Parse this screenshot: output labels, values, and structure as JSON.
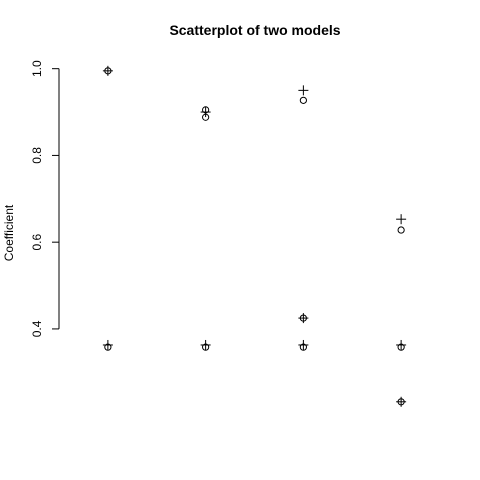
{
  "chart_data": {
    "type": "scatter",
    "title": "Scatterplot of two models",
    "xlabel": "",
    "ylabel": "Coefficient",
    "x_ticks_shown": false,
    "y_ticks": [
      "0.4",
      "0.6",
      "0.8",
      "1.0"
    ],
    "ylim": [
      0.22,
      1.02
    ],
    "xlim": [
      0.5,
      4.5
    ],
    "grid": false,
    "series": [
      {
        "marker": "circle",
        "points": [
          {
            "x": 1,
            "y": 0.995
          },
          {
            "x": 1,
            "y": 0.358
          },
          {
            "x": 2,
            "y": 0.905
          },
          {
            "x": 2,
            "y": 0.888
          },
          {
            "x": 2,
            "y": 0.358
          },
          {
            "x": 3,
            "y": 0.927
          },
          {
            "x": 3,
            "y": 0.425
          },
          {
            "x": 3,
            "y": 0.358
          },
          {
            "x": 4,
            "y": 0.628
          },
          {
            "x": 4,
            "y": 0.358
          },
          {
            "x": 4,
            "y": 0.232
          }
        ]
      },
      {
        "marker": "plus",
        "points": [
          {
            "x": 1,
            "y": 0.995
          },
          {
            "x": 1,
            "y": 0.363
          },
          {
            "x": 2,
            "y": 0.9
          },
          {
            "x": 2,
            "y": 0.363
          },
          {
            "x": 3,
            "y": 0.95
          },
          {
            "x": 3,
            "y": 0.425
          },
          {
            "x": 3,
            "y": 0.363
          },
          {
            "x": 4,
            "y": 0.653
          },
          {
            "x": 4,
            "y": 0.363
          },
          {
            "x": 4,
            "y": 0.232
          }
        ]
      }
    ]
  }
}
